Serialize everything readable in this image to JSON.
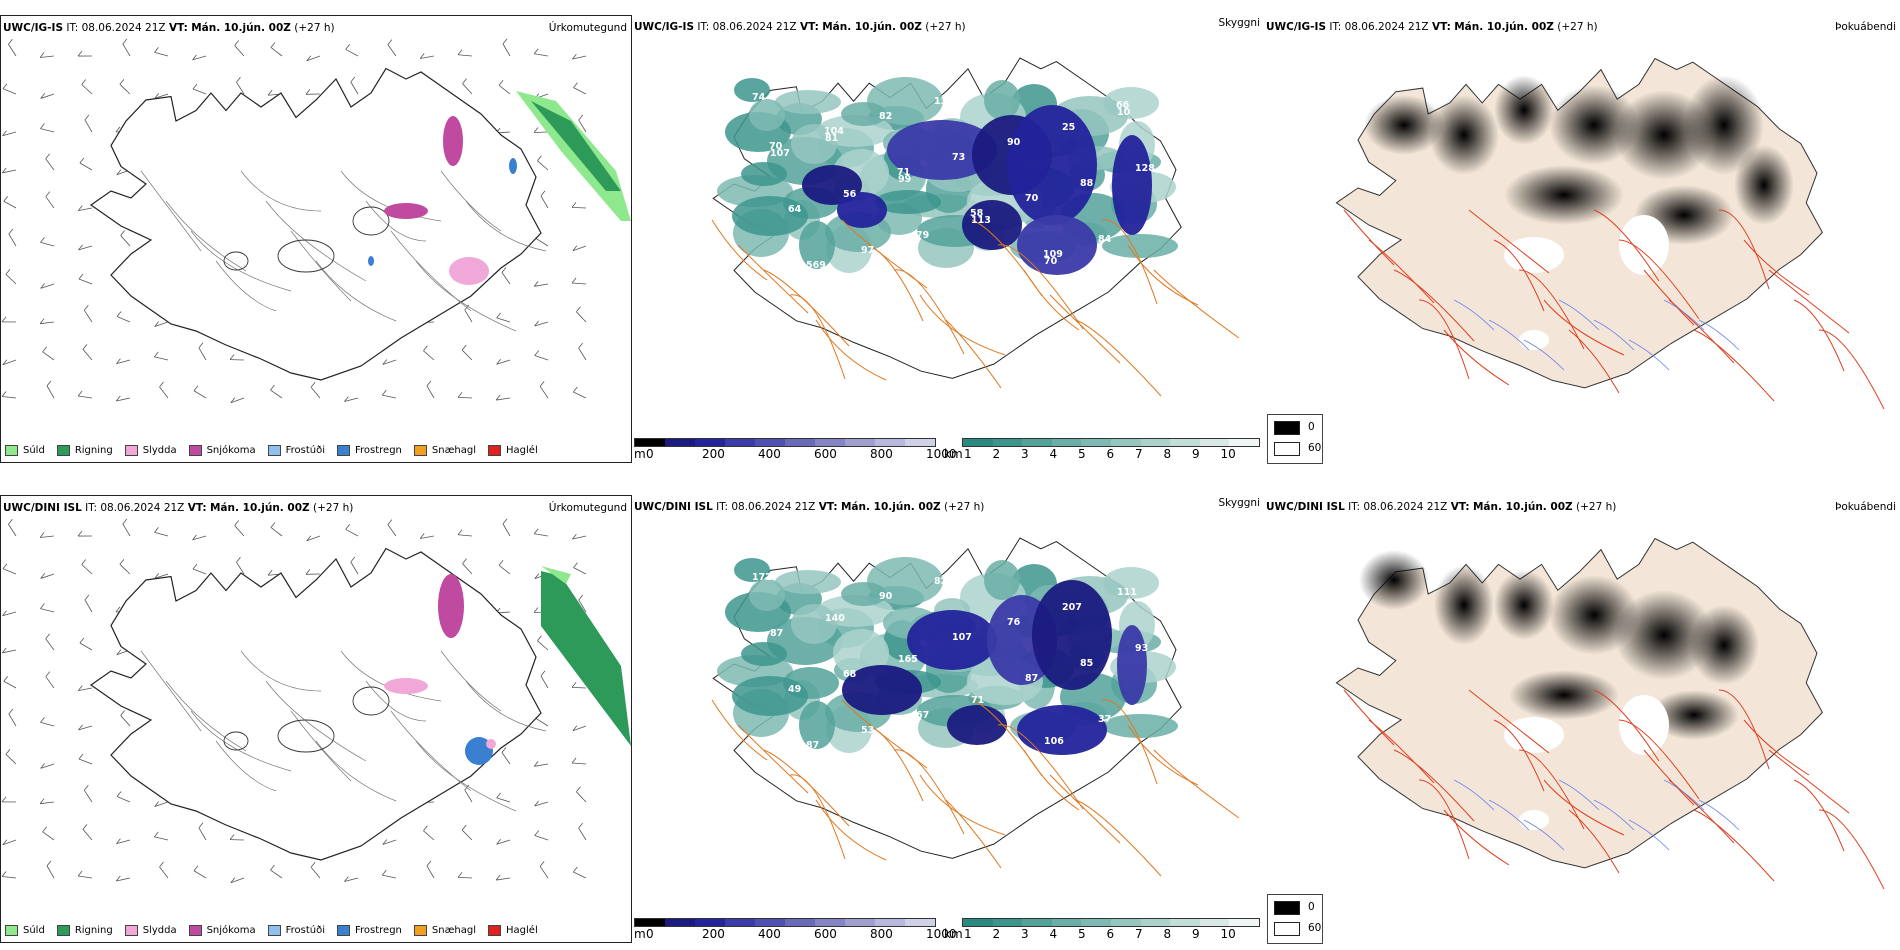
{
  "colors": {
    "suld": "#8ee88e",
    "rigning": "#2e9a5a",
    "slydda": "#f0a8d8",
    "snjokoma": "#c04aa0",
    "frostudi": "#8fbfef",
    "frostregn": "#3b7fd0",
    "snaehagl": "#f0a020",
    "haglel": "#e02020",
    "ceiling_shades": [
      "#000000",
      "#1a1a80",
      "#23239b",
      "#3a3aa8",
      "#5050b0",
      "#6a6ab8",
      "#8585c5",
      "#a0a0d0",
      "#b8b8dc",
      "#d0d0e8"
    ],
    "vis_shades": [
      "#2a8a82",
      "#3d968e",
      "#52a29a",
      "#68aea6",
      "#7ebab2",
      "#95c6bf",
      "#acd2cc",
      "#c3ded9",
      "#dae9e6",
      "#f0f6f5"
    ],
    "land": "#f3e6d8",
    "roads_orange": "#e07820",
    "roads_red": "#e04020",
    "rivers": "#6a84e8"
  },
  "rows": [
    {
      "model": "UWC/IG-IS",
      "it": "IT: 08.06.2024 21Z",
      "vt_label": "VT:",
      "vt": "Mán. 10.jún. 00Z",
      "lead": "(+27 h)",
      "ptype_title": "Úrkomutegund",
      "vis_title": "Skyggni",
      "fog_title": "Þokuábendi",
      "ceiling_numbers": [
        "74",
        "81",
        "99",
        "113",
        "70",
        "10",
        "107",
        "56",
        "79",
        "69",
        "25",
        "128",
        "64",
        "97",
        "133",
        "90",
        "88",
        "49",
        "569",
        "82",
        "73",
        "70",
        "84",
        "120",
        "104",
        "71",
        "58",
        "109",
        "66",
        "70"
      ]
    },
    {
      "model": "UWC/DINI ISL",
      "it": "IT: 08.06.2024 21Z",
      "vt_label": "VT:",
      "vt": "Mán. 10.jún. 00Z",
      "lead": "(+27 h)",
      "ptype_title": "Úrkomutegund",
      "vis_title": "Skyggni",
      "fog_title": "Þokuábendi",
      "ceiling_numbers": [
        "172",
        "140",
        "165",
        "71",
        "106",
        "111",
        "87",
        "68",
        "67",
        "118",
        "207",
        "93",
        "49",
        "53",
        "82",
        "76",
        "85",
        "68",
        "87",
        "90",
        "107",
        "87",
        "37",
        "107"
      ]
    }
  ],
  "ptype_legend": [
    "Súld",
    "Rigning",
    "Slydda",
    "Snjókoma",
    "Frostúði",
    "Frostregn",
    "Snæhagl",
    "Haglél"
  ],
  "ceiling_bar": {
    "unit": "m",
    "ticks": [
      "0",
      "200",
      "400",
      "600",
      "800",
      "1000"
    ]
  },
  "vis_bar": {
    "unit": "km",
    "ticks": [
      "1",
      "2",
      "3",
      "4",
      "5",
      "6",
      "7",
      "8",
      "9",
      "10"
    ]
  },
  "fog_legend": {
    "low": "0",
    "high": "60"
  }
}
